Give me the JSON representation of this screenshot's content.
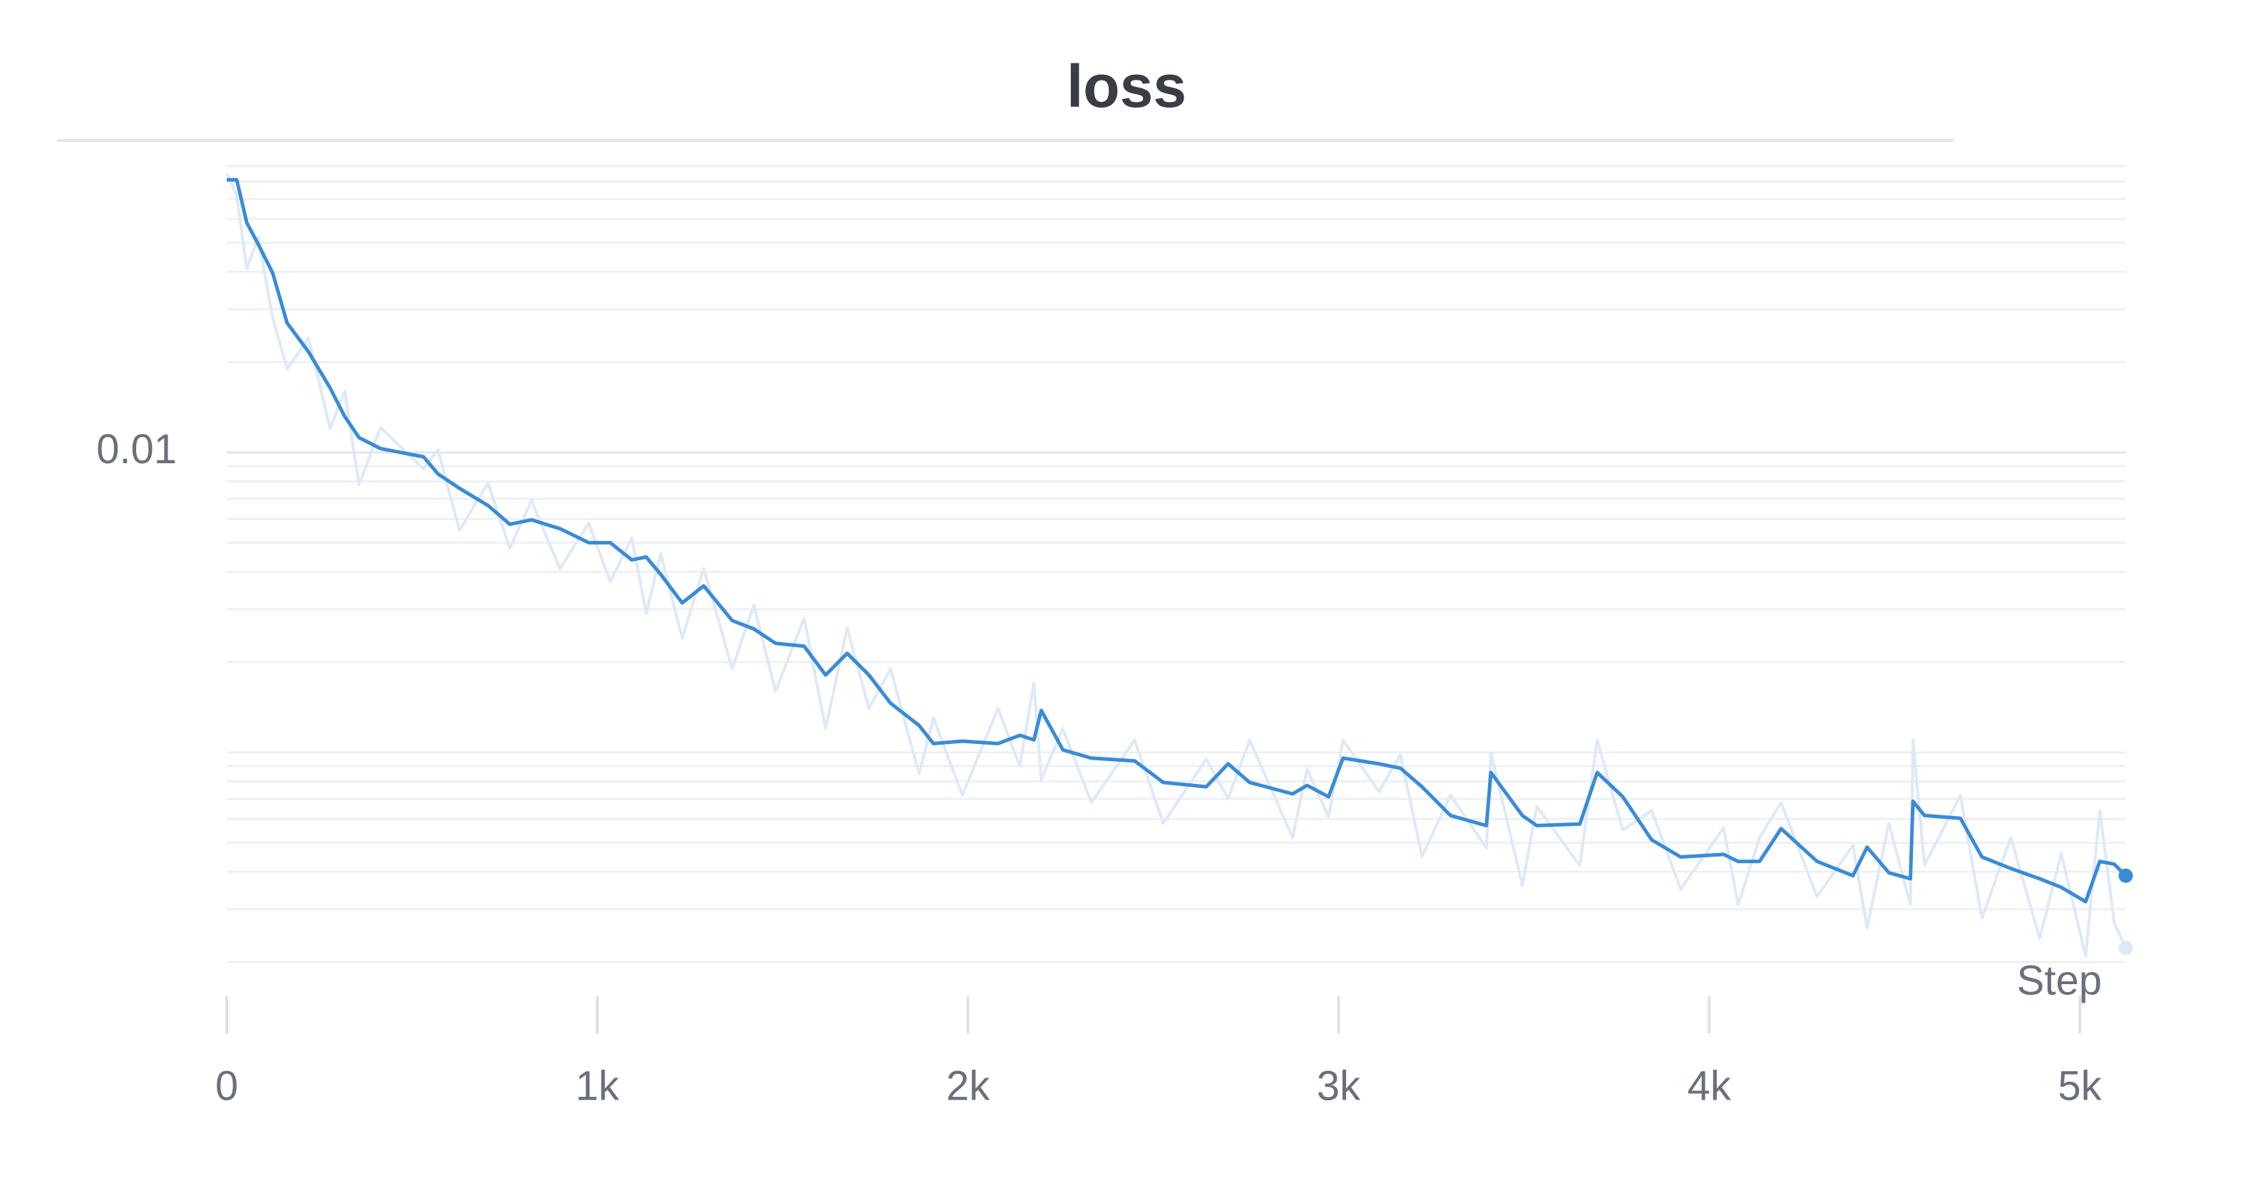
{
  "chart_data": {
    "type": "line",
    "title": "loss",
    "x_label": "Step",
    "log_scale_y": true,
    "grid": true,
    "x": [
      0,
      27,
      54,
      85,
      124,
      163,
      221,
      279,
      318,
      357,
      415,
      531,
      570,
      628,
      705,
      764,
      822,
      899,
      977,
      1035,
      1093,
      1132,
      1171,
      1229,
      1287,
      1364,
      1422,
      1481,
      1558,
      1616,
      1674,
      1733,
      1791,
      1868,
      1907,
      1985,
      2081,
      2140,
      2178,
      2198,
      2256,
      2333,
      2450,
      2527,
      2643,
      2702,
      2760,
      2876,
      2915,
      2973,
      3012,
      3109,
      3167,
      3225,
      3302,
      3399,
      3411,
      3496,
      3535,
      3651,
      3698,
      3767,
      3845,
      3923,
      4039,
      4078,
      4136,
      4194,
      4291,
      4388,
      4426,
      4485,
      4543,
      4550,
      4581,
      4678,
      4736,
      4814,
      4892,
      4950,
      5016,
      5054,
      5093,
      5124
    ],
    "series": [
      {
        "color": "#dde9f8",
        "values": [
          0.085,
          0.072,
          0.041,
          0.052,
          0.028,
          0.019,
          0.024,
          0.012,
          0.016,
          0.0078,
          0.0121,
          0.0088,
          0.0102,
          0.0055,
          0.0079,
          0.0048,
          0.0069,
          0.0041,
          0.0058,
          0.0037,
          0.0052,
          0.0029,
          0.0046,
          0.0024,
          0.0041,
          0.0019,
          0.0031,
          0.0016,
          0.0028,
          0.0012,
          0.0026,
          0.0014,
          0.0019,
          0.00085,
          0.0013,
          0.00072,
          0.0014,
          0.0009,
          0.0017,
          0.00081,
          0.0012,
          0.00068,
          0.0011,
          0.00058,
          0.00095,
          0.0007,
          0.0011,
          0.00052,
          0.00088,
          0.00061,
          0.0011,
          0.00074,
          0.00098,
          0.00045,
          0.00072,
          0.00048,
          0.001,
          0.00036,
          0.00066,
          0.00042,
          0.0011,
          0.00055,
          0.00064,
          0.00035,
          0.00056,
          0.00031,
          0.00052,
          0.00068,
          0.00033,
          0.00049,
          0.00026,
          0.00058,
          0.00031,
          0.0011,
          0.00042,
          0.00072,
          0.00028,
          0.00052,
          0.00024,
          0.00046,
          0.00021,
          0.00064,
          0.00027,
          0.000223
        ]
      },
      {
        "color": "#3a8bd6",
        "values": [
          0.0811,
          0.0811,
          0.0583,
          0.0494,
          0.0396,
          0.027,
          0.0216,
          0.0164,
          0.0132,
          0.0112,
          0.0103,
          0.00967,
          0.00848,
          0.00759,
          0.00665,
          0.00576,
          0.00596,
          0.00557,
          0.005,
          0.005,
          0.00438,
          0.00448,
          0.00392,
          0.00315,
          0.00359,
          0.00275,
          0.00258,
          0.00231,
          0.00226,
          0.00181,
          0.00214,
          0.00181,
          0.00146,
          0.00123,
          0.00107,
          0.00109,
          0.00107,
          0.00114,
          0.0011,
          0.00138,
          0.00102,
          0.000957,
          0.000936,
          0.000794,
          0.000768,
          0.000916,
          0.000794,
          0.000727,
          0.000776,
          0.000711,
          0.000957,
          0.000916,
          0.000886,
          0.000768,
          0.000616,
          0.00057,
          0.000857,
          0.000616,
          0.00057,
          0.000577,
          0.000857,
          0.000711,
          0.000511,
          0.000448,
          0.000457,
          0.000433,
          0.000433,
          0.000557,
          0.000433,
          0.000388,
          0.000483,
          0.000397,
          0.000379,
          0.000687,
          0.000616,
          0.000603,
          0.000448,
          0.00041,
          0.000379,
          0.000355,
          0.000318,
          0.000433,
          0.000424,
          0.000388
        ]
      }
    ],
    "xlim": [
      0,
      5125
    ],
    "xticks": [
      0,
      {
        "value": 1000,
        "label": "1k"
      },
      {
        "value": 2000,
        "label": "2k"
      },
      {
        "value": 3000,
        "label": "3k"
      },
      {
        "value": 4000,
        "label": "4k"
      },
      {
        "value": 5000,
        "label": "5k"
      }
    ],
    "ylim": [
      0.000144,
      0.0936
    ],
    "yticks": [
      0.01
    ]
  }
}
